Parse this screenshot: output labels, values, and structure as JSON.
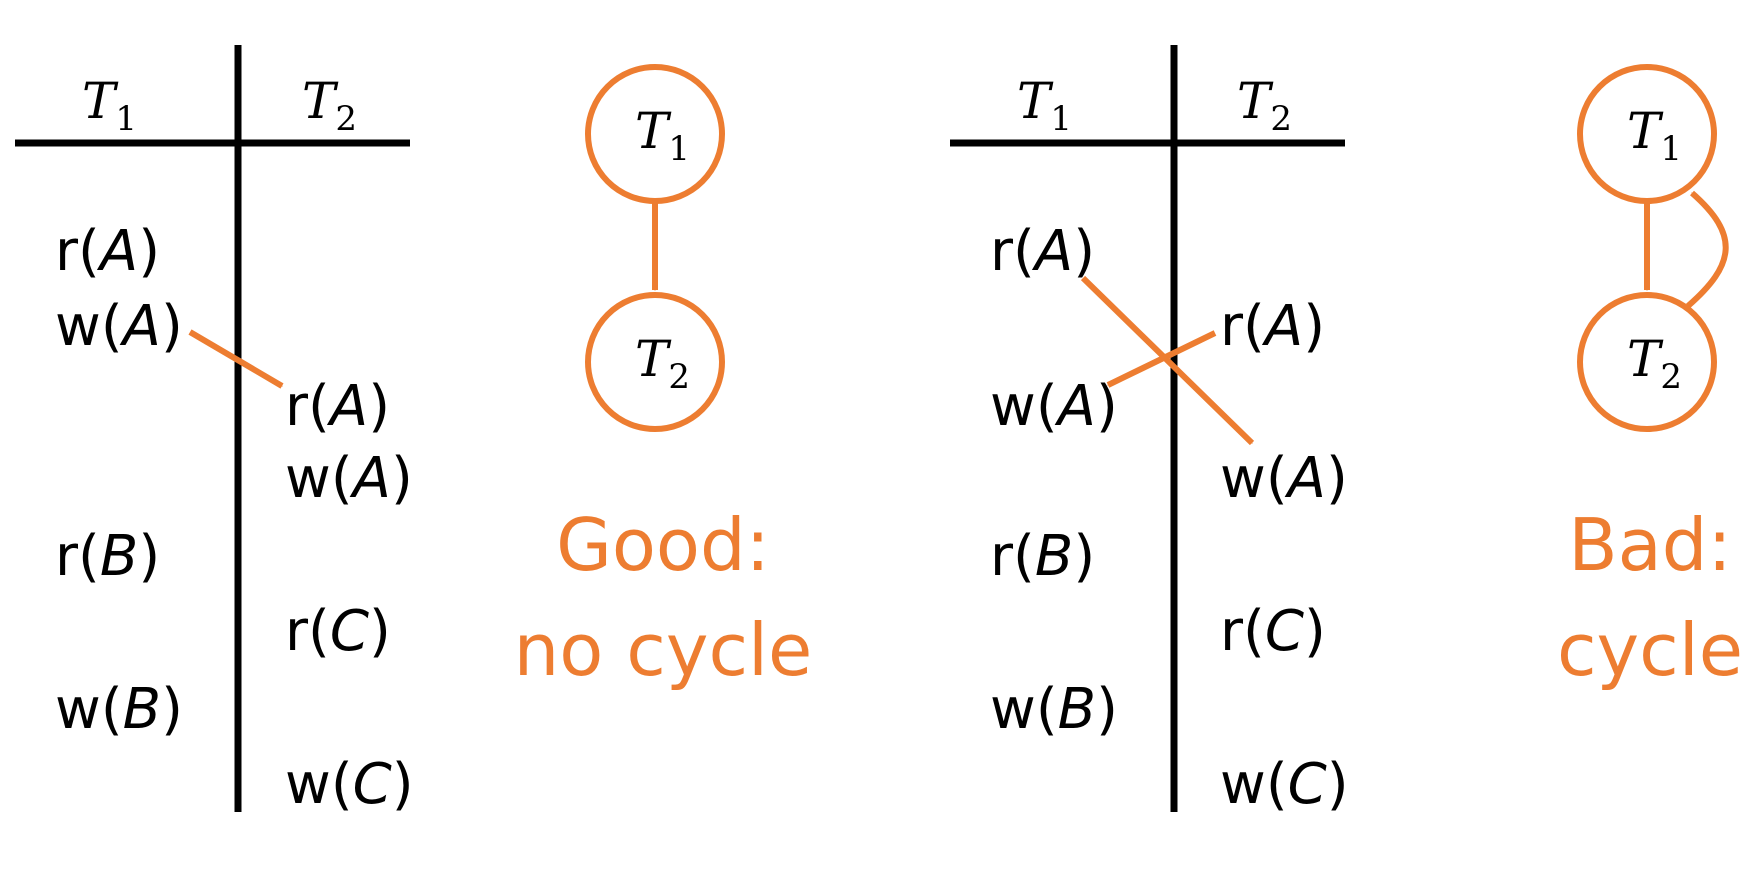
{
  "accent_color": "#ED7D31",
  "ink_color": "#000000",
  "schedules": [
    {
      "headers": [
        {
          "main": "T",
          "sub": "1"
        },
        {
          "main": "T",
          "sub": "2"
        }
      ],
      "ops": [
        {
          "fn": "r",
          "arg": "A"
        },
        {
          "fn": "w",
          "arg": "A"
        },
        {
          "fn": "r",
          "arg": "A"
        },
        {
          "fn": "w",
          "arg": "A"
        },
        {
          "fn": "r",
          "arg": "B"
        },
        {
          "fn": "r",
          "arg": "C"
        },
        {
          "fn": "w",
          "arg": "B"
        },
        {
          "fn": "w",
          "arg": "C"
        }
      ],
      "graph_nodes": [
        {
          "main": "T",
          "sub": "1"
        },
        {
          "main": "T",
          "sub": "2"
        }
      ],
      "verdict_line1": "Good:",
      "verdict_line2": "no cycle"
    },
    {
      "headers": [
        {
          "main": "T",
          "sub": "1"
        },
        {
          "main": "T",
          "sub": "2"
        }
      ],
      "ops": [
        {
          "fn": "r",
          "arg": "A"
        },
        {
          "fn": "r",
          "arg": "A"
        },
        {
          "fn": "w",
          "arg": "A"
        },
        {
          "fn": "w",
          "arg": "A"
        },
        {
          "fn": "r",
          "arg": "B"
        },
        {
          "fn": "r",
          "arg": "C"
        },
        {
          "fn": "w",
          "arg": "B"
        },
        {
          "fn": "w",
          "arg": "C"
        }
      ],
      "graph_nodes": [
        {
          "main": "T",
          "sub": "1"
        },
        {
          "main": "T",
          "sub": "2"
        }
      ],
      "verdict_line1": "Bad:",
      "verdict_line2": "cycle"
    }
  ]
}
